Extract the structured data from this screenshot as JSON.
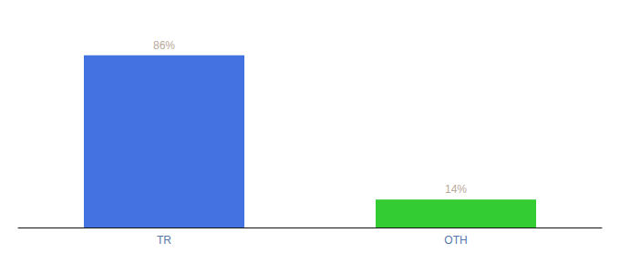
{
  "chart_data": {
    "type": "bar",
    "categories": [
      "TR",
      "OTH"
    ],
    "values": [
      86,
      14
    ],
    "value_labels": [
      "86%",
      "14%"
    ],
    "colors": [
      "#4472e0",
      "#33cc33"
    ],
    "ylim": [
      0,
      100
    ],
    "grid": false,
    "data_labels": true,
    "tick_labels": "x"
  }
}
